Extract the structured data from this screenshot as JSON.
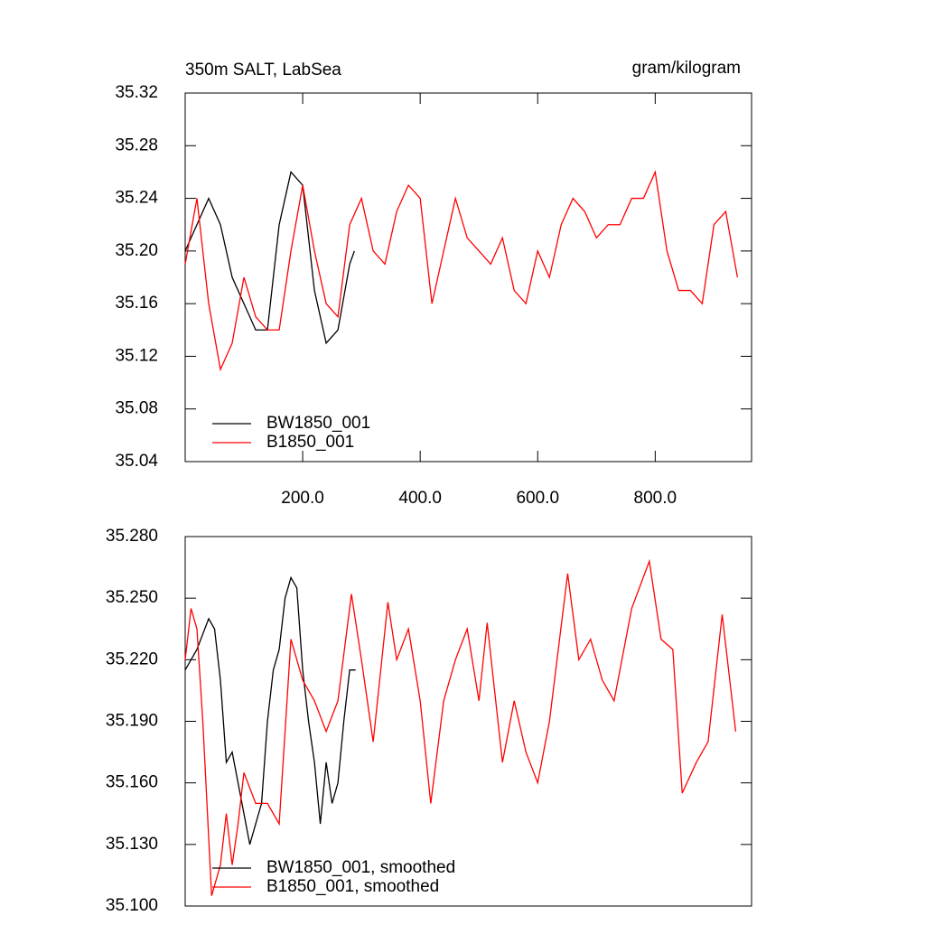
{
  "chart_data": [
    {
      "type": "line",
      "title": "350m SALT, LabSea",
      "subtitle": "gram/kilogram",
      "xlim": [
        0,
        964
      ],
      "ylim": [
        35.04,
        35.32
      ],
      "xticks": [
        {
          "value": 200,
          "label": "200.0"
        },
        {
          "value": 400,
          "label": "400.0"
        },
        {
          "value": 600,
          "label": "600.0"
        },
        {
          "value": 800,
          "label": "800.0"
        }
      ],
      "yticks": [
        35.04,
        35.08,
        35.12,
        35.16,
        {
          "value": 35.2,
          "label": "35.20"
        },
        35.24,
        35.28,
        35.32
      ],
      "legend": "lower left",
      "series": [
        {
          "name": "BW1850_001",
          "color": "#000000",
          "x": [
            0,
            20,
            40,
            60,
            80,
            100,
            120,
            140,
            160,
            180,
            200,
            220,
            240,
            260,
            280,
            288
          ],
          "values": [
            35.2,
            35.22,
            35.24,
            35.22,
            35.18,
            35.16,
            35.14,
            35.14,
            35.22,
            35.26,
            35.25,
            35.17,
            35.13,
            35.14,
            35.19,
            35.2
          ]
        },
        {
          "name": "B1850_001",
          "color": "#ff0000",
          "x": [
            0,
            20,
            40,
            60,
            80,
            100,
            120,
            140,
            160,
            180,
            200,
            220,
            240,
            260,
            280,
            300,
            320,
            340,
            360,
            380,
            400,
            420,
            440,
            460,
            480,
            500,
            520,
            540,
            560,
            580,
            600,
            620,
            640,
            660,
            680,
            700,
            720,
            740,
            760,
            780,
            800,
            820,
            840,
            860,
            880,
            900,
            920,
            940
          ],
          "values": [
            35.19,
            35.24,
            35.16,
            35.11,
            35.13,
            35.18,
            35.15,
            35.14,
            35.14,
            35.2,
            35.25,
            35.2,
            35.16,
            35.15,
            35.22,
            35.24,
            35.2,
            35.19,
            35.23,
            35.25,
            35.24,
            35.16,
            35.2,
            35.24,
            35.21,
            35.2,
            35.19,
            35.21,
            35.17,
            35.16,
            35.2,
            35.18,
            35.22,
            35.24,
            35.23,
            35.21,
            35.22,
            35.22,
            35.24,
            35.24,
            35.26,
            35.2,
            35.17,
            35.17,
            35.16,
            35.22,
            35.23,
            35.18
          ]
        }
      ]
    },
    {
      "type": "line",
      "xlim": [
        0,
        964
      ],
      "ylim": [
        35.1,
        35.28
      ],
      "yticks": [
        {
          "value": 35.1,
          "label": "35.100"
        },
        {
          "value": 35.13,
          "label": "35.130"
        },
        {
          "value": 35.16,
          "label": "35.160"
        },
        {
          "value": 35.19,
          "label": "35.190"
        },
        {
          "value": 35.22,
          "label": "35.220"
        },
        {
          "value": 35.25,
          "label": "35.250"
        },
        {
          "value": 35.28,
          "label": "35.280"
        }
      ],
      "legend": "lower left",
      "series": [
        {
          "name": "BW1850_001, smoothed",
          "color": "#000000",
          "x": [
            0,
            10,
            20,
            40,
            50,
            60,
            70,
            80,
            90,
            100,
            110,
            120,
            130,
            140,
            150,
            160,
            170,
            180,
            190,
            200,
            210,
            220,
            230,
            240,
            250,
            260,
            270,
            280,
            290
          ],
          "values": [
            35.215,
            35.22,
            35.225,
            35.24,
            35.235,
            35.21,
            35.17,
            35.175,
            35.16,
            35.145,
            35.13,
            35.14,
            35.15,
            35.19,
            35.215,
            35.225,
            35.25,
            35.26,
            35.255,
            35.215,
            35.19,
            35.17,
            35.14,
            35.17,
            35.15,
            35.16,
            35.19,
            35.215,
            35.215
          ]
        },
        {
          "name": "B1850_001, smoothed",
          "color": "#ff0000",
          "x": [
            0,
            10,
            20,
            30,
            45,
            60,
            70,
            80,
            90,
            100,
            120,
            140,
            160,
            180,
            200,
            220,
            240,
            260,
            283,
            300,
            320,
            345,
            360,
            380,
            400,
            418,
            440,
            460,
            480,
            500,
            514,
            540,
            560,
            580,
            600,
            620,
            651,
            670,
            690,
            710,
            730,
            760,
            790,
            810,
            830,
            846,
            870,
            890,
            914,
            937
          ],
          "values": [
            35.22,
            35.245,
            35.235,
            35.19,
            35.105,
            35.12,
            35.145,
            35.12,
            35.14,
            35.165,
            35.15,
            35.15,
            35.14,
            35.23,
            35.21,
            35.2,
            35.185,
            35.2,
            35.252,
            35.22,
            35.18,
            35.248,
            35.22,
            35.235,
            35.2,
            35.15,
            35.2,
            35.22,
            35.235,
            35.2,
            35.238,
            35.17,
            35.2,
            35.175,
            35.16,
            35.19,
            35.262,
            35.22,
            35.23,
            35.21,
            35.2,
            35.245,
            35.268,
            35.23,
            35.225,
            35.155,
            35.17,
            35.18,
            35.242,
            35.185
          ]
        }
      ]
    }
  ]
}
